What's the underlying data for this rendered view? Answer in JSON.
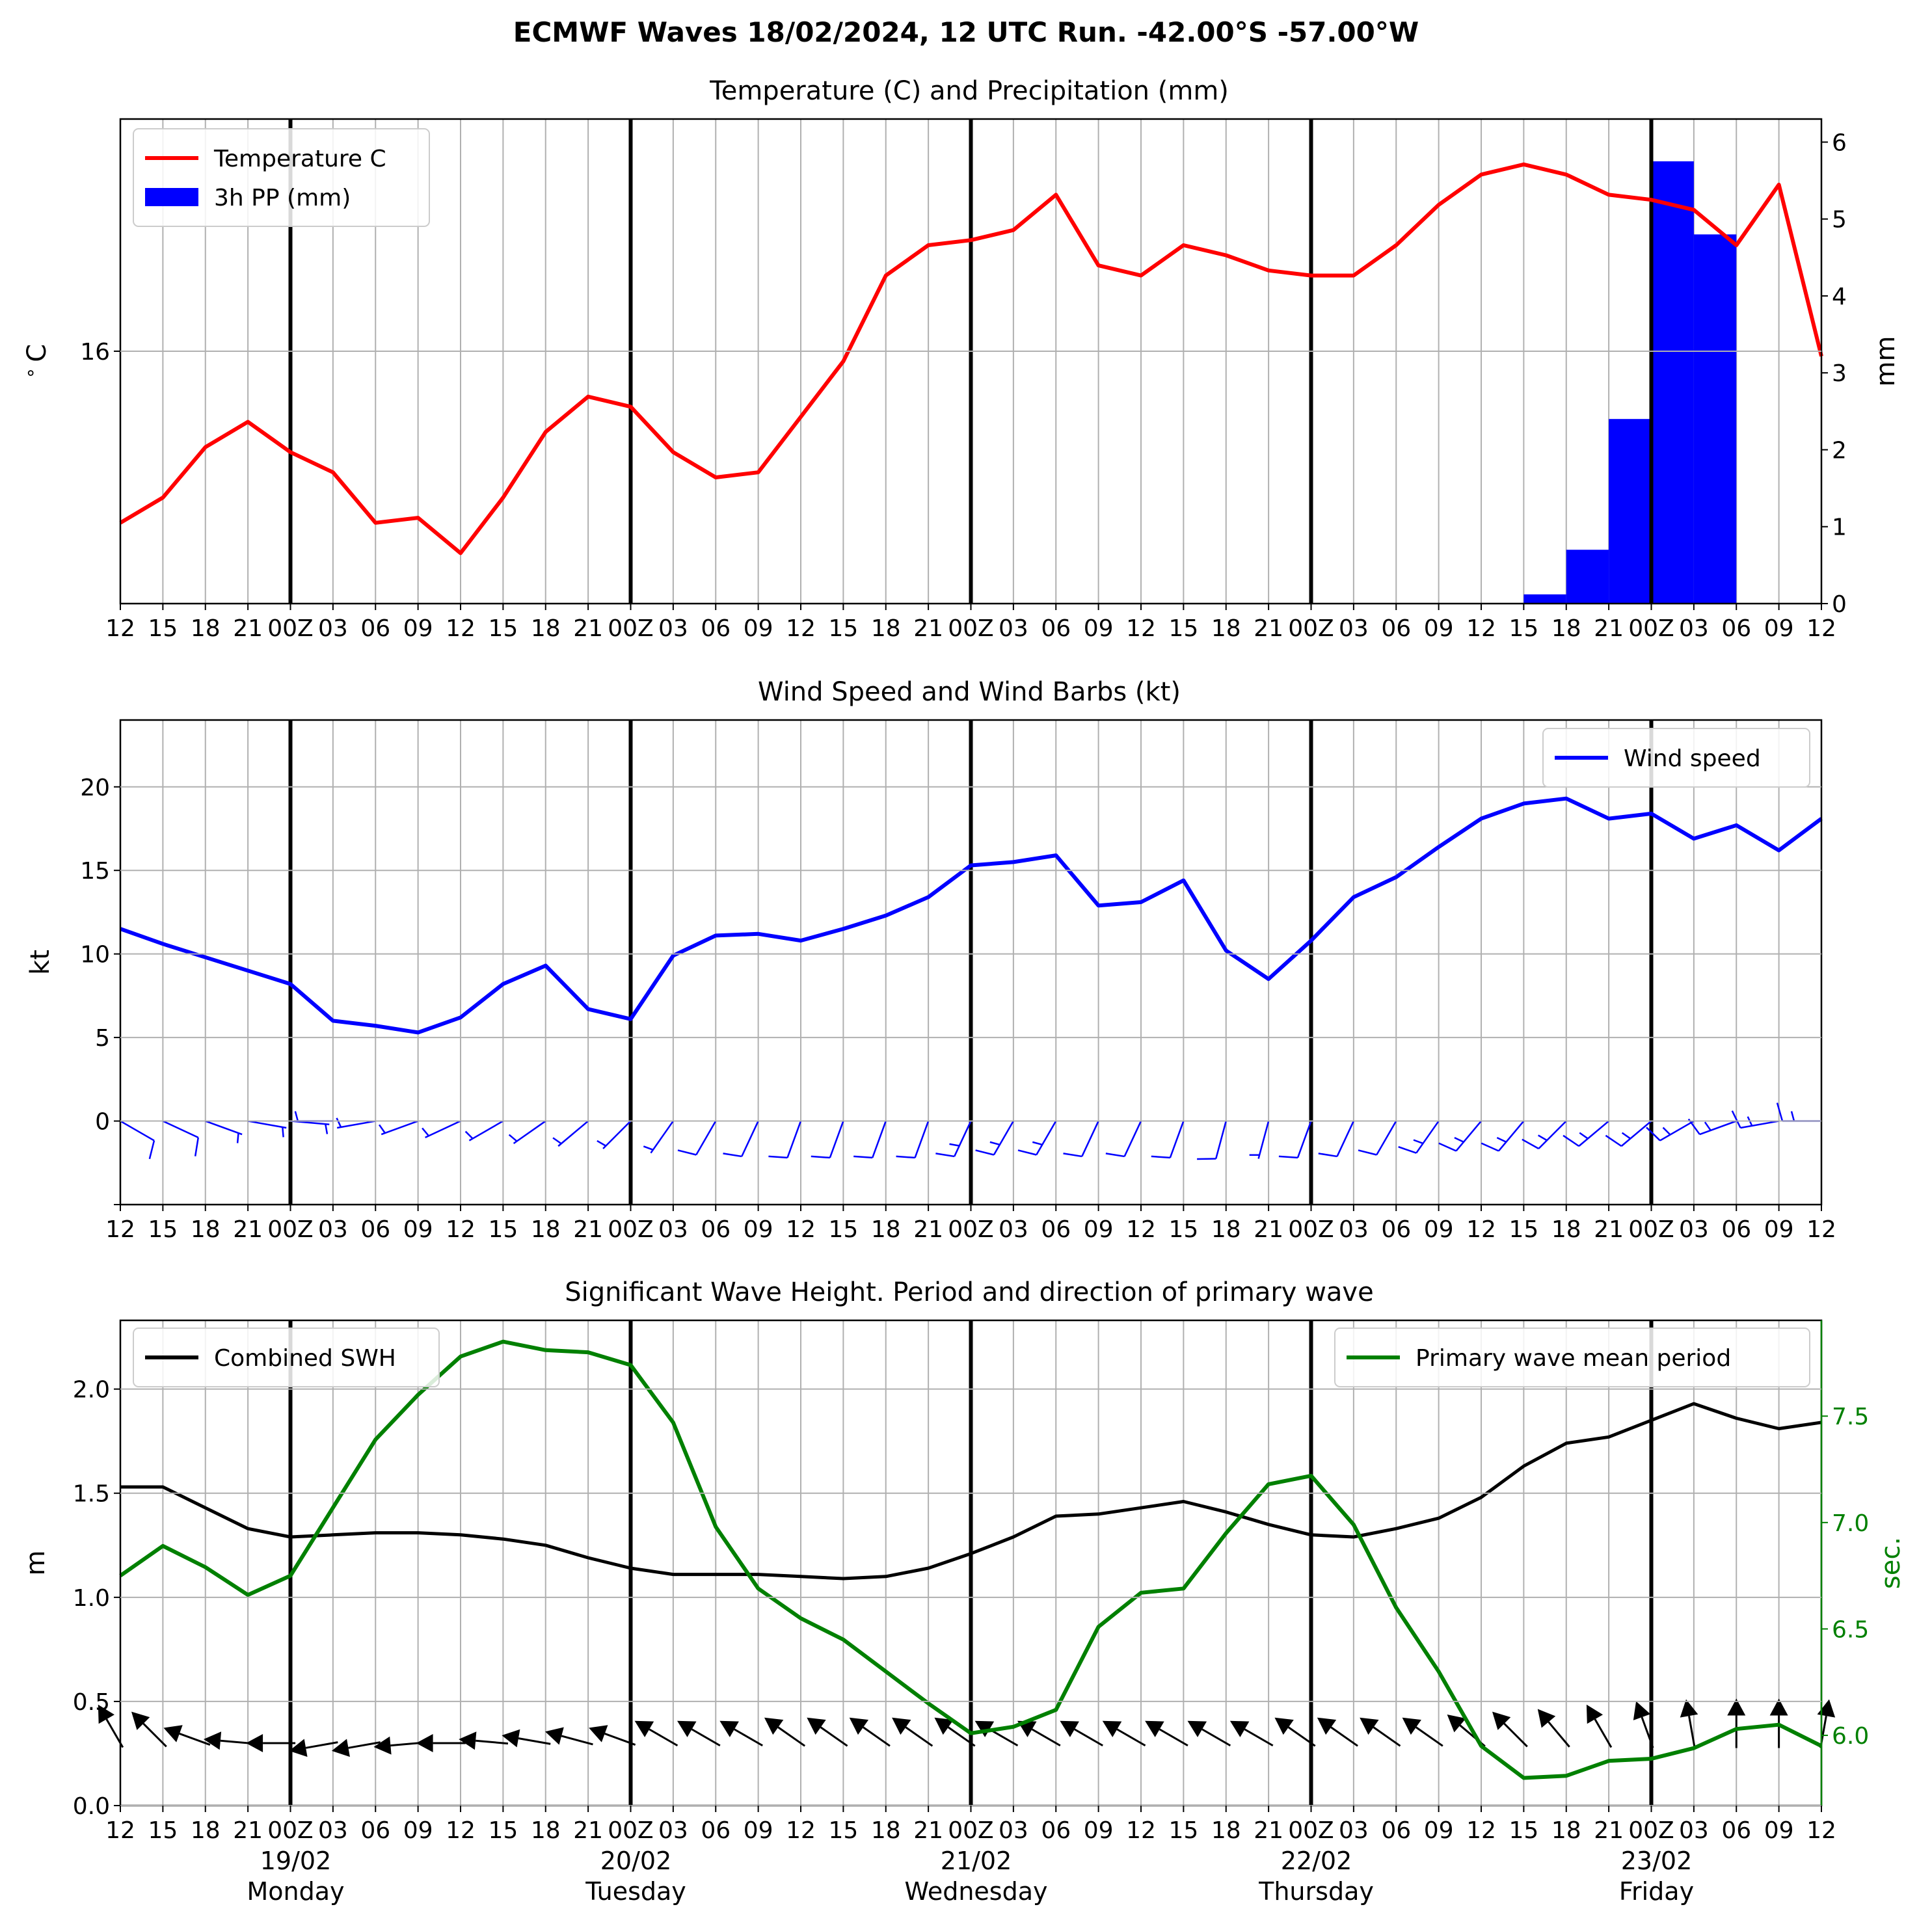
{
  "figure": {
    "suptitle": "ECMWF Waves 18/02/2024, 12 UTC Run. -42.00°S -57.00°W"
  },
  "time_axis": {
    "tick_labels": [
      "12",
      "15",
      "18",
      "21",
      "00Z",
      "03",
      "06",
      "09",
      "12",
      "15",
      "18",
      "21",
      "00Z",
      "03",
      "06",
      "09",
      "12",
      "15",
      "18",
      "21",
      "00Z",
      "03",
      "06",
      "09",
      "12",
      "15",
      "18",
      "21",
      "00Z",
      "03",
      "06",
      "09",
      "12",
      "15",
      "18",
      "21",
      "00Z",
      "03",
      "06",
      "09",
      "12"
    ],
    "day_labels": [
      {
        "index": 4,
        "date": "19/02",
        "weekday": "Monday"
      },
      {
        "index": 12,
        "date": "20/02",
        "weekday": "Tuesday"
      },
      {
        "index": 20,
        "date": "21/02",
        "weekday": "Wednesday"
      },
      {
        "index": 28,
        "date": "22/02",
        "weekday": "Thursday"
      },
      {
        "index": 36,
        "date": "23/02",
        "weekday": "Friday"
      }
    ],
    "day_boundaries": [
      4,
      12,
      20,
      28,
      36
    ],
    "grid": true
  },
  "colors": {
    "temperature": "#ff0000",
    "precipitation": "#0000ff",
    "wind": "#0000ff",
    "swh": "#000000",
    "period": "#008000",
    "grid": "#b0b0b0"
  },
  "chart_data": [
    {
      "type": "line",
      "title": "Temperature (C) and Precipitation (mm)",
      "ylabel": "$^\\circ$C",
      "y2label": "mm",
      "yticks": [
        16
      ],
      "y2ticks": [
        0,
        1,
        2,
        3,
        4,
        5,
        6
      ],
      "ylim": [
        13.5,
        18.3
      ],
      "y2lim": [
        0,
        6.3
      ],
      "legend": "top-left",
      "series": [
        {
          "name": "Temperature C",
          "axis": "left",
          "values": [
            14.3,
            14.55,
            15.05,
            15.3,
            15.0,
            14.8,
            14.3,
            14.35,
            14.0,
            14.55,
            15.2,
            15.55,
            15.45,
            15.0,
            14.75,
            14.8,
            15.35,
            15.9,
            16.75,
            17.05,
            17.1,
            17.2,
            17.55,
            16.85,
            16.75,
            17.05,
            16.95,
            16.8,
            16.75,
            16.75,
            17.05,
            17.45,
            17.75,
            17.85,
            17.75,
            17.55,
            17.5,
            17.4,
            17.05,
            17.65,
            15.95
          ]
        },
        {
          "name": "3h PP (mm)",
          "axis": "right",
          "kind": "bar",
          "values": [
            0,
            0,
            0,
            0,
            0,
            0,
            0,
            0,
            0,
            0,
            0,
            0,
            0,
            0,
            0,
            0,
            0,
            0,
            0,
            0,
            0,
            0,
            0,
            0,
            0,
            0,
            0,
            0,
            0,
            0,
            0,
            0,
            0,
            0.12,
            0.7,
            2.4,
            5.75,
            4.8,
            0,
            0
          ]
        }
      ]
    },
    {
      "type": "line",
      "title": "Wind Speed and Wind Barbs (kt)",
      "ylabel": "kt",
      "yticks": [
        0,
        5,
        10,
        15,
        20
      ],
      "ylim": [
        -5,
        24
      ],
      "legend": "top-right",
      "series": [
        {
          "name": "Wind speed",
          "values": [
            11.5,
            10.6,
            9.8,
            9.0,
            8.2,
            6.0,
            5.7,
            5.3,
            6.2,
            8.2,
            9.3,
            6.7,
            6.1,
            9.9,
            11.1,
            11.2,
            10.8,
            11.5,
            12.3,
            13.4,
            15.3,
            15.5,
            15.9,
            12.9,
            13.1,
            14.4,
            10.2,
            8.5,
            10.8,
            13.4,
            14.6,
            16.4,
            18.1,
            19.0,
            19.3,
            18.1,
            18.4,
            16.9,
            17.7,
            16.2,
            18.1
          ]
        }
      ],
      "wind_barbs": {
        "description": "barbs",
        "from_direction_deg": [
          120,
          115,
          110,
          100,
          95,
          270,
          260,
          250,
          245,
          240,
          235,
          230,
          225,
          215,
          210,
          205,
          200,
          200,
          200,
          200,
          205,
          210,
          210,
          205,
          205,
          200,
          195,
          195,
          200,
          205,
          210,
          215,
          220,
          220,
          225,
          230,
          230,
          240,
          250,
          260,
          270
        ],
        "speed_kt": [
          11.5,
          10.6,
          9.8,
          9.0,
          8.2,
          6.0,
          5.7,
          5.3,
          6.2,
          8.2,
          9.3,
          6.7,
          6.1,
          9.9,
          11.1,
          11.2,
          10.8,
          11.5,
          12.3,
          13.4,
          15.3,
          15.5,
          15.9,
          12.9,
          13.1,
          14.4,
          10.2,
          8.5,
          10.8,
          13.4,
          14.6,
          16.4,
          18.1,
          19.0,
          19.3,
          18.1,
          18.4,
          16.9,
          17.7,
          16.2,
          18.1
        ]
      }
    },
    {
      "type": "line",
      "title": "Significant Wave Height. Period and direction of primary wave",
      "ylabel": "m",
      "y2label": "sec.",
      "yticks": [
        0.0,
        0.5,
        1.0,
        1.5,
        2.0
      ],
      "y2ticks": [
        6.0,
        6.5,
        7.0,
        7.5
      ],
      "ylim": [
        0,
        2.33
      ],
      "y2lim": [
        5.67,
        7.95
      ],
      "legend_left": "top-left",
      "legend_right": "top-right",
      "series": [
        {
          "name": "Combined SWH",
          "axis": "left",
          "values": [
            1.53,
            1.53,
            1.43,
            1.33,
            1.29,
            1.3,
            1.31,
            1.31,
            1.3,
            1.28,
            1.25,
            1.19,
            1.14,
            1.11,
            1.11,
            1.11,
            1.1,
            1.09,
            1.1,
            1.14,
            1.21,
            1.29,
            1.39,
            1.4,
            1.43,
            1.46,
            1.41,
            1.35,
            1.3,
            1.29,
            1.33,
            1.38,
            1.48,
            1.63,
            1.74,
            1.77,
            1.85,
            1.93,
            1.86,
            1.81,
            1.84
          ]
        },
        {
          "name": "Primary wave mean period",
          "axis": "right",
          "values": [
            6.75,
            6.89,
            6.79,
            6.66,
            6.75,
            7.07,
            7.39,
            7.6,
            7.78,
            7.85,
            7.81,
            7.8,
            7.74,
            7.47,
            6.98,
            6.69,
            6.55,
            6.45,
            6.3,
            6.15,
            6.01,
            6.04,
            6.12,
            6.51,
            6.67,
            6.69,
            6.95,
            7.18,
            7.22,
            6.99,
            6.6,
            6.3,
            5.95,
            5.8,
            5.81,
            5.88,
            5.89,
            5.94,
            6.03,
            6.05,
            5.95
          ]
        }
      ],
      "wave_direction_arrows": {
        "description": "arrows",
        "from_direction_deg": [
          150,
          135,
          110,
          95,
          90,
          80,
          80,
          85,
          90,
          95,
          100,
          105,
          110,
          120,
          120,
          120,
          125,
          125,
          125,
          125,
          125,
          120,
          120,
          120,
          120,
          120,
          120,
          120,
          125,
          125,
          125,
          125,
          130,
          135,
          140,
          150,
          160,
          170,
          180,
          180,
          190
        ]
      }
    }
  ]
}
